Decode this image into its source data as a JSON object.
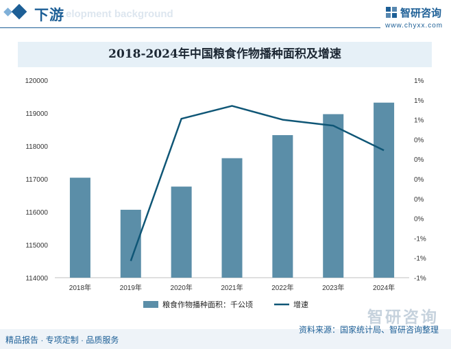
{
  "header": {
    "title": "下游",
    "subtitle": "elopment background"
  },
  "brand": {
    "name": "智研咨询",
    "url": "www.chyxx.com",
    "watermark": "智研咨询"
  },
  "colors": {
    "bar": "#5b8ea8",
    "line": "#0f5676",
    "accent": "#1d5f96"
  },
  "chart_data": {
    "type": "bar",
    "title": "2018-2024年中国粮食作物播种面积及增速",
    "categories": [
      "2018年",
      "2019年",
      "2020年",
      "2021年",
      "2022年",
      "2023年",
      "2024年"
    ],
    "series": [
      {
        "name": "粮食作物播种面积：千公顷",
        "type": "bar",
        "axis": "left",
        "values": [
          117038,
          116064,
          116768,
          117631,
          118332,
          118969,
          119319
        ]
      },
      {
        "name": "增速",
        "type": "line",
        "axis": "right",
        "values": [
          null,
          -0.83,
          0.61,
          0.74,
          0.6,
          0.54,
          0.29
        ]
      }
    ],
    "y_left": {
      "min": 114000,
      "max": 120000,
      "ticks": [
        "114000",
        "115000",
        "116000",
        "117000",
        "118000",
        "119000",
        "120000"
      ]
    },
    "y_right": {
      "min": -1.0,
      "max": 1.0,
      "tick_labels": [
        "-1%",
        "-1%",
        "-1%",
        "0%",
        "0%",
        "0%",
        "0%",
        "0%",
        "1%",
        "1%",
        "1%"
      ]
    },
    "legend_position": "bottom",
    "grid": false
  },
  "footer": {
    "left": "精品报告 · 专项定制 · 品质服务",
    "source": "资料来源：国家统计局、智研咨询整理"
  }
}
